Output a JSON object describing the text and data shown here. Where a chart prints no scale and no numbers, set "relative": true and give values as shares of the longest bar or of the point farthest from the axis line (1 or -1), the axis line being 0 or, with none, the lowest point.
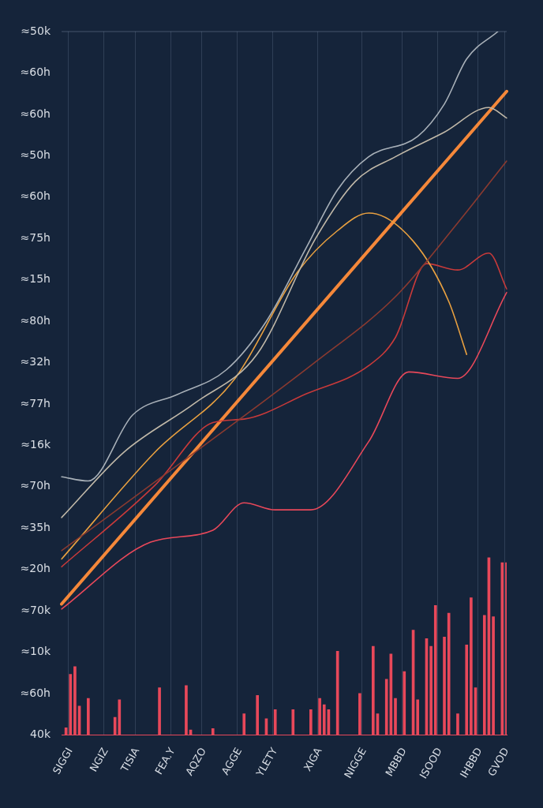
{
  "chart_data": {
    "type": "line",
    "relative": true,
    "grid": "x",
    "marker": "none",
    "line_style": "solid",
    "categories": [
      null,
      null,
      "SIGGI",
      null,
      null,
      null,
      null,
      null,
      null,
      null,
      "NGIZ",
      null,
      null,
      null,
      null,
      null,
      null,
      "TISIA",
      null,
      null,
      null,
      null,
      null,
      null,
      null,
      "FEA.Y",
      null,
      null,
      null,
      null,
      null,
      null,
      "AQZO",
      null,
      null,
      null,
      null,
      null,
      null,
      null,
      "AGGE",
      null,
      null,
      null,
      null,
      null,
      null,
      null,
      "YLETY",
      null,
      null,
      null,
      null,
      null,
      null,
      null,
      null,
      null,
      "XIGA",
      null,
      null,
      null,
      null,
      null,
      null,
      null,
      null,
      null,
      "NIGGE",
      null,
      null,
      null,
      null,
      null,
      null,
      null,
      null,
      "MBBD",
      null,
      null,
      null,
      null,
      null,
      null,
      null,
      "ISOOD",
      null,
      null,
      null,
      null,
      null,
      null,
      null,
      null,
      "IHBBD",
      null,
      null,
      null,
      null,
      null,
      "GVOD"
    ],
    "annotations": [
      "≈50k",
      "≈60h",
      "≈60h",
      "≈50h",
      "≈60h",
      "≈75h",
      "≈15h",
      "≈80h",
      "≈32h",
      "≈77h",
      "≈16k",
      "≈70h",
      "≈35h",
      "≈20h",
      "≈70k",
      "≈10k",
      "≈60h",
      "40k"
    ],
    "series": [
      {
        "type": "bar",
        "color": "#e8485a",
        "values": [
          null,
          0.01,
          0.086,
          0.097,
          0.041,
          null,
          0.052,
          null,
          null,
          null,
          null,
          null,
          0.025,
          0.05,
          null,
          null,
          null,
          null,
          null,
          null,
          null,
          null,
          0.067,
          null,
          null,
          null,
          null,
          null,
          0.07,
          0.007,
          null,
          null,
          null,
          null,
          0.009,
          null,
          null,
          null,
          null,
          null,
          null,
          0.03,
          null,
          null,
          0.056,
          null,
          0.023,
          null,
          0.036,
          null,
          null,
          null,
          0.036,
          null,
          null,
          null,
          0.036,
          null,
          0.052,
          0.043,
          0.036,
          null,
          0.119,
          null,
          null,
          null,
          null,
          0.059,
          null,
          null,
          0.126,
          0.03,
          null,
          0.079,
          0.115,
          0.052,
          null,
          0.09,
          null,
          0.149,
          0.05,
          null,
          0.137,
          0.126,
          0.184,
          null,
          0.139,
          0.173,
          null,
          0.03,
          null,
          0.128,
          0.195,
          0.067,
          null,
          0.17,
          0.252,
          0.168,
          null,
          0.245,
          0.245
        ]
      },
      {
        "color": "#a8b0b8",
        "values": [
          0.367,
          null,
          null,
          null,
          null,
          null,
          0.361,
          null,
          null,
          null,
          null,
          null,
          null,
          null,
          null,
          null,
          0.455,
          null,
          null,
          null,
          null,
          null,
          null,
          null,
          null,
          null,
          0.484,
          null,
          null,
          null,
          null,
          null,
          null,
          null,
          null,
          null,
          null,
          0.519,
          null,
          null,
          null,
          null,
          null,
          null,
          null,
          null,
          0.588,
          null,
          null,
          null,
          null,
          null,
          null,
          null,
          null,
          0.693,
          null,
          null,
          null,
          null,
          null,
          null,
          0.775,
          null,
          null,
          null,
          null,
          null,
          null,
          0.822,
          null,
          null,
          null,
          null,
          null,
          null,
          null,
          null,
          null,
          null,
          0.851,
          null,
          null,
          null,
          null,
          null,
          0.897,
          null,
          null,
          null,
          null,
          0.961,
          null,
          null,
          null,
          null,
          null,
          null,
          1,
          null,
          null
        ]
      },
      {
        "color": "#c0b8a8",
        "values": [
          0.309,
          null,
          null,
          null,
          null,
          null,
          null,
          null,
          null,
          null,
          null,
          null,
          null,
          null,
          0.402,
          null,
          null,
          null,
          null,
          null,
          null,
          null,
          null,
          null,
          null,
          null,
          null,
          null,
          null,
          null,
          0.472,
          null,
          null,
          null,
          null,
          null,
          null,
          null,
          null,
          null,
          null,
          null,
          null,
          null,
          0.542,
          null,
          null,
          null,
          null,
          null,
          null,
          null,
          null,
          null,
          null,
          null,
          null,
          0.705,
          null,
          null,
          null,
          null,
          null,
          null,
          null,
          null,
          0.787,
          null,
          null,
          null,
          null,
          null,
          null,
          null,
          null,
          0.822,
          null,
          null,
          null,
          null,
          null,
          null,
          null,
          null,
          null,
          null,
          0.857,
          null,
          null,
          null,
          null,
          null,
          null,
          null,
          null,
          null,
          0.892,
          null,
          null,
          null,
          0.877
        ]
      },
      {
        "color": "#8a3a30",
        "values": [
          0.262,
          null,
          null,
          null,
          null,
          null,
          null,
          null,
          null,
          null,
          null,
          null,
          null,
          null,
          null,
          null,
          null,
          null,
          null,
          null,
          null,
          null,
          null,
          null,
          null,
          null,
          null,
          null,
          null,
          null,
          0.402,
          null,
          null,
          null,
          null,
          null,
          null,
          null,
          null,
          null,
          null,
          null,
          null,
          null,
          null,
          null,
          null,
          null,
          null,
          null,
          null,
          null,
          null,
          null,
          null,
          null,
          null,
          0.53,
          null,
          null,
          null,
          null,
          null,
          null,
          null,
          null,
          null,
          null,
          null,
          null,
          null,
          null,
          null,
          null,
          null,
          0.623,
          null,
          null,
          null,
          null,
          null,
          null,
          null,
          null,
          null,
          null,
          null,
          null,
          null,
          0.728,
          null,
          null,
          null,
          null,
          null,
          null,
          null,
          null,
          null,
          null,
          0.816
        ]
      },
      {
        "color": "#e8a040",
        "values": [
          0.25,
          null,
          null,
          null,
          null,
          null,
          null,
          null,
          null,
          null,
          null,
          null,
          null,
          null,
          null,
          null,
          null,
          null,
          null,
          null,
          null,
          0.402,
          null,
          null,
          null,
          null,
          null,
          null,
          null,
          null,
          null,
          null,
          null,
          null,
          null,
          null,
          null,
          null,
          null,
          0.507,
          null,
          null,
          null,
          null,
          null,
          null,
          null,
          null,
          null,
          null,
          null,
          null,
          null,
          0.658,
          null,
          null,
          null,
          null,
          null,
          null,
          null,
          null,
          0.717,
          null,
          null,
          null,
          null,
          null,
          null,
          0.742,
          null,
          null,
          null,
          null,
          null,
          null,
          null,
          null,
          null,
          0.702,
          null,
          null,
          null,
          null,
          null,
          null,
          null,
          0.616,
          null,
          null,
          null,
          0.541,
          null,
          null,
          null,
          null,
          null,
          null,
          null,
          null,
          null
        ]
      },
      {
        "color": "#c83a3a",
        "values": [
          0.239,
          null,
          null,
          null,
          null,
          null,
          null,
          null,
          null,
          null,
          null,
          null,
          null,
          null,
          null,
          null,
          null,
          null,
          null,
          null,
          null,
          0.355,
          null,
          null,
          null,
          null,
          null,
          null,
          null,
          null,
          null,
          null,
          null,
          null,
          0.444,
          null,
          null,
          null,
          null,
          null,
          null,
          0.449,
          null,
          null,
          null,
          null,
          null,
          null,
          null,
          null,
          null,
          null,
          null,
          null,
          null,
          0.485,
          null,
          null,
          null,
          null,
          null,
          null,
          null,
          null,
          null,
          null,
          null,
          null,
          null,
          0.525,
          null,
          null,
          null,
          null,
          null,
          0.565,
          null,
          null,
          null,
          null,
          null,
          null,
          0.67,
          null,
          null,
          null,
          null,
          null,
          null,
          0.661,
          null,
          null,
          null,
          null,
          null,
          null,
          0.685,
          null,
          null,
          null,
          0.634
        ]
      },
      {
        "color": "#e8485a",
        "values": [
          0.179,
          null,
          null,
          null,
          null,
          null,
          null,
          null,
          null,
          null,
          null,
          null,
          null,
          null,
          null,
          null,
          null,
          null,
          null,
          null,
          0.274,
          null,
          null,
          null,
          null,
          null,
          null,
          null,
          null,
          null,
          null,
          null,
          null,
          null,
          0.291,
          null,
          null,
          null,
          null,
          null,
          null,
          0.33,
          null,
          null,
          null,
          null,
          null,
          null,
          0.32,
          null,
          null,
          null,
          null,
          null,
          null,
          null,
          0.32,
          null,
          null,
          null,
          null,
          null,
          null,
          null,
          null,
          null,
          null,
          null,
          null,
          0.417,
          null,
          null,
          null,
          null,
          null,
          null,
          null,
          null,
          0.516,
          null,
          null,
          null,
          null,
          null,
          null,
          null,
          null,
          null,
          null,
          0.507,
          null,
          null,
          null,
          null,
          null,
          null,
          null,
          null,
          null,
          null,
          0.629
        ]
      },
      {
        "color": "#f5883a",
        "values": [
          0.186,
          null,
          null,
          null,
          null,
          null,
          null,
          null,
          null,
          null,
          null,
          null,
          null,
          null,
          null,
          null,
          null,
          null,
          null,
          null,
          null,
          null,
          null,
          null,
          null,
          null,
          null,
          null,
          null,
          null,
          null,
          null,
          null,
          null,
          null,
          null,
          null,
          null,
          null,
          null,
          null,
          null,
          null,
          null,
          null,
          null,
          null,
          null,
          null,
          null,
          null,
          null,
          null,
          null,
          null,
          null,
          null,
          null,
          null,
          null,
          null,
          null,
          null,
          null,
          null,
          null,
          null,
          null,
          null,
          null,
          null,
          null,
          null,
          null,
          null,
          null,
          null,
          null,
          null,
          null,
          null,
          null,
          null,
          null,
          null,
          null,
          null,
          null,
          null,
          null,
          null,
          null,
          null,
          null,
          null,
          null,
          null,
          null,
          null,
          null,
          0.915
        ]
      }
    ]
  }
}
